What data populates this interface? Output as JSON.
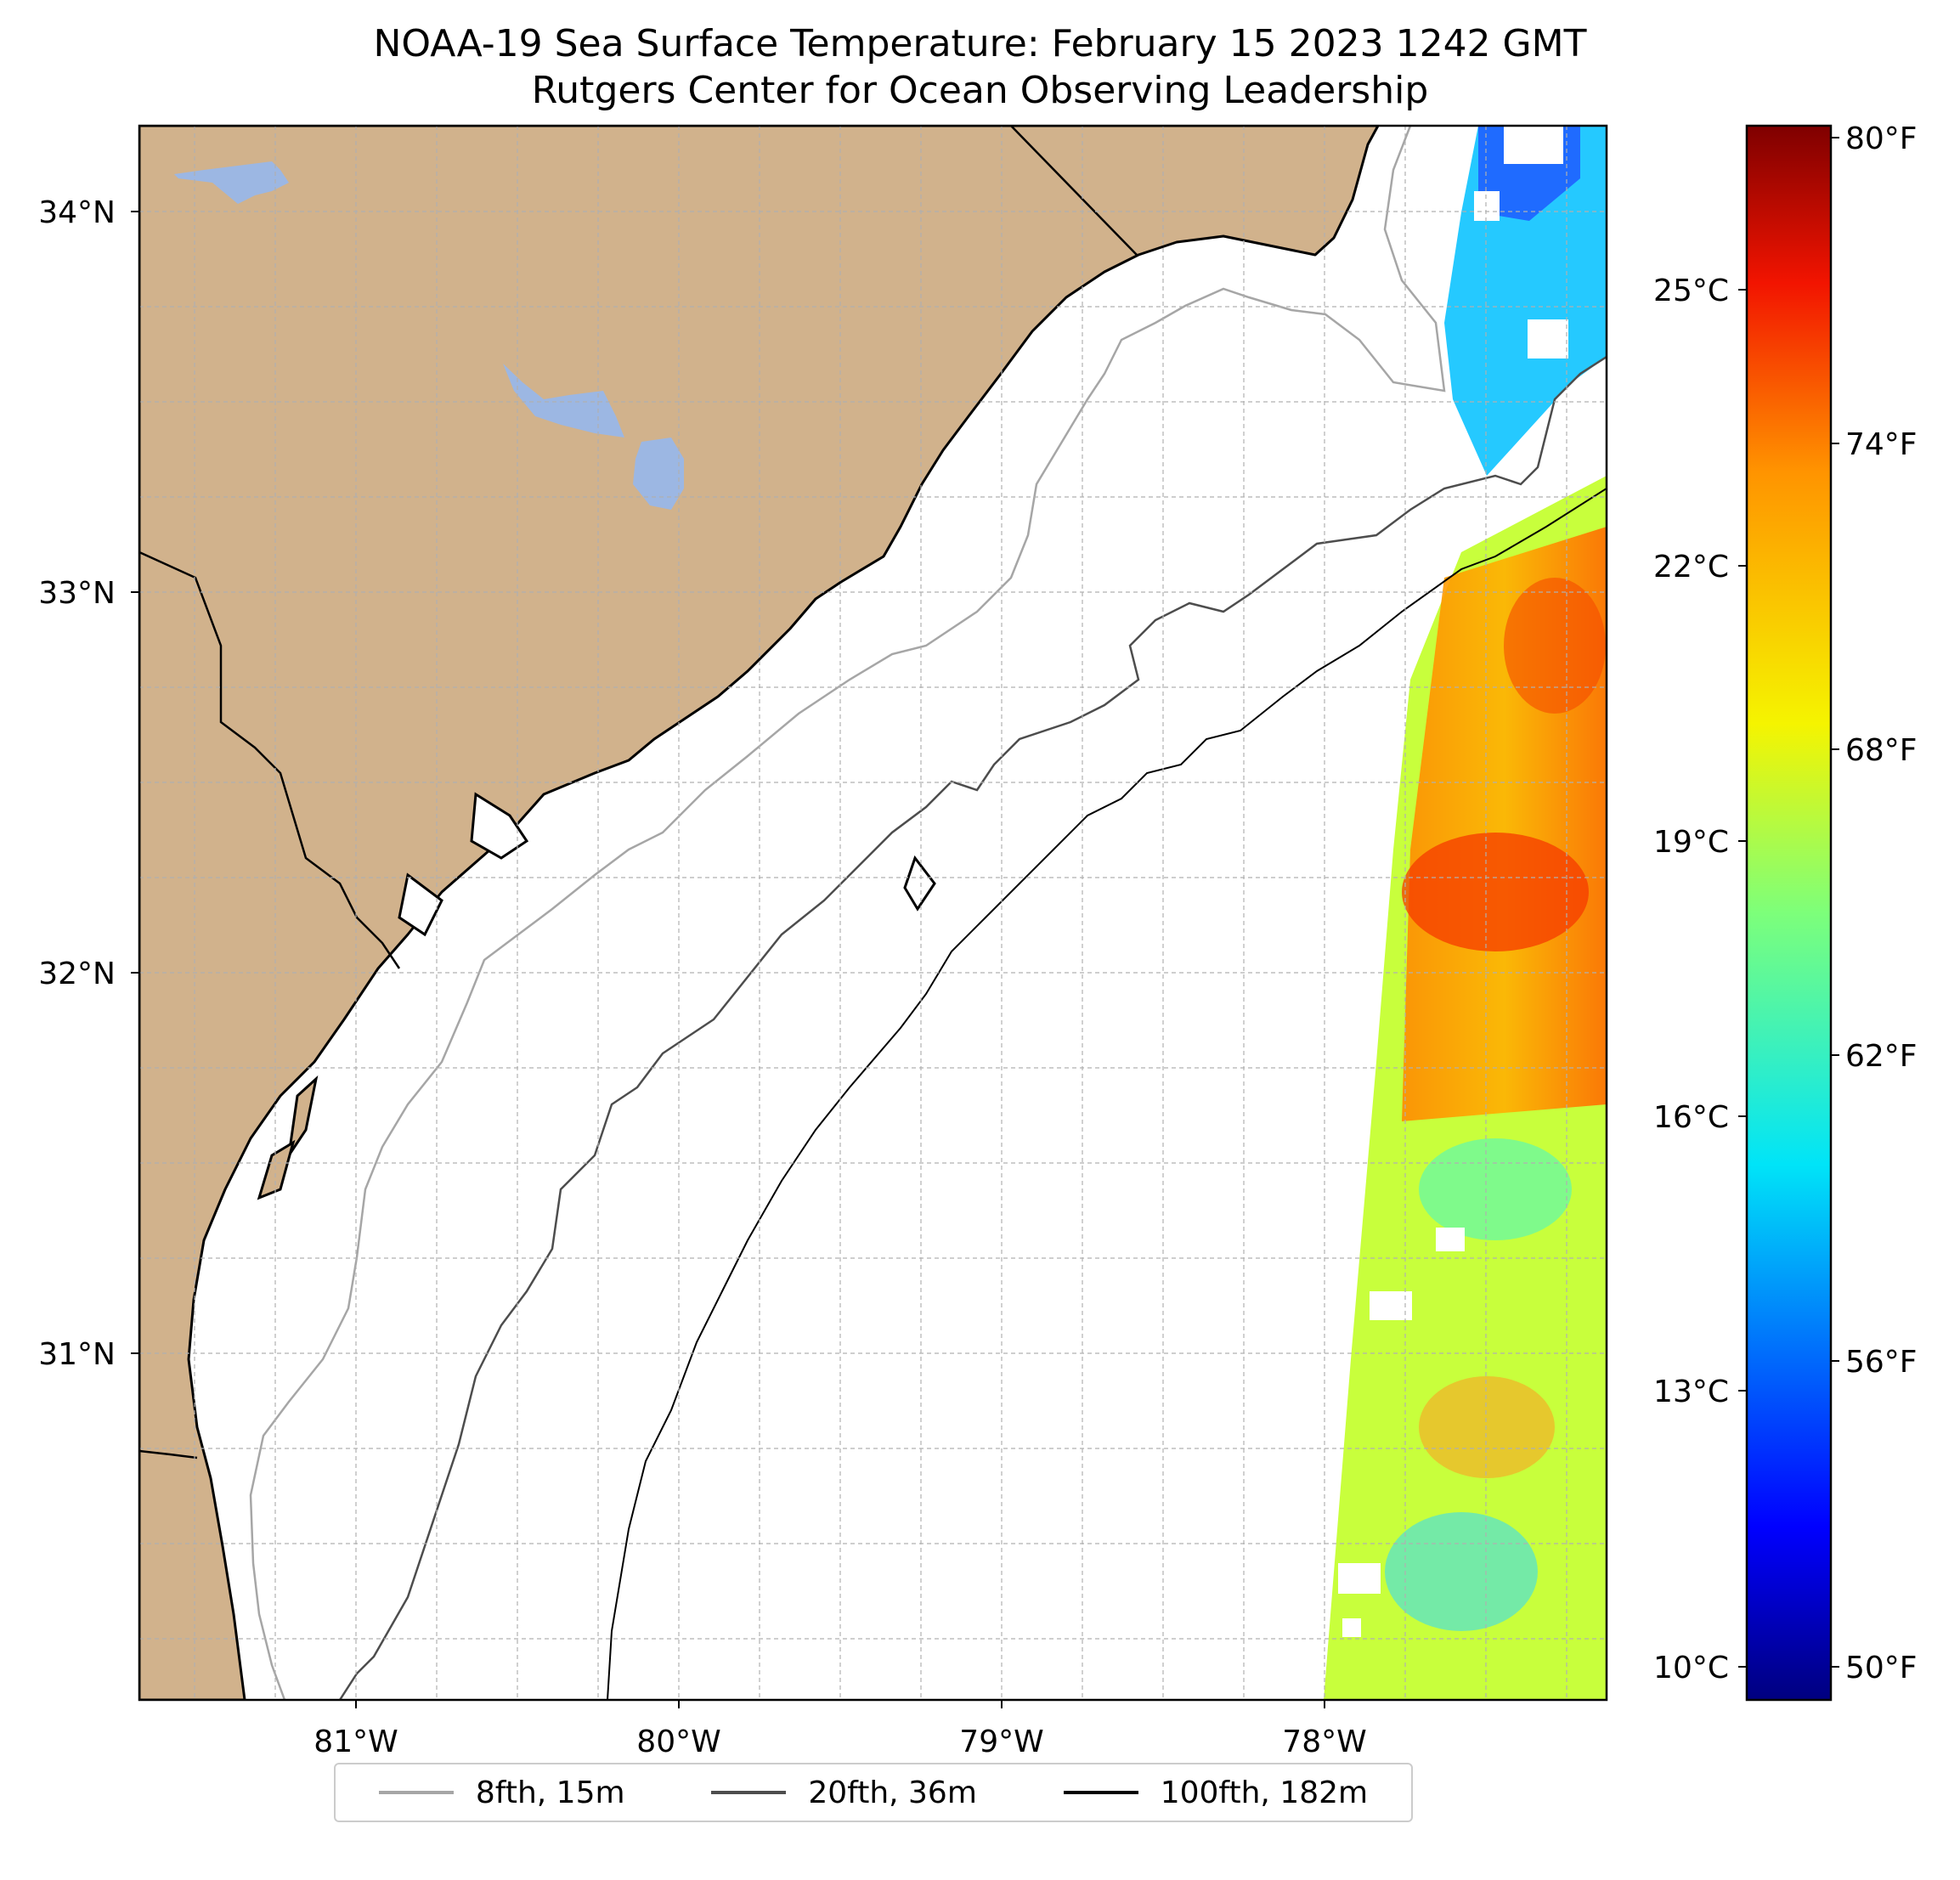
{
  "title_line1": "NOAA-19 Sea Surface Temperature: February 15 2023 1242 GMT",
  "title_line2": "Rutgers Center for Ocean Observing Leadership",
  "colors": {
    "land": "#d1b28c",
    "lakes": "#9cb7e3",
    "grid": "#b0b0b0",
    "contour_8fth": "#a6a6a6",
    "contour_20fth": "#4d4d4d",
    "contour_100fth": "#000000"
  },
  "map": {
    "lat_labels": [
      "34°N",
      "33°N",
      "32°N",
      "31°N"
    ],
    "lon_labels": [
      "81°W",
      "80°W",
      "79°W",
      "78°W"
    ]
  },
  "colorbar": {
    "celsius_labels": [
      "25°C",
      "22°C",
      "19°C",
      "16°C",
      "13°C",
      "10°C"
    ],
    "fahrenheit_labels": [
      "80°F",
      "74°F",
      "68°F",
      "62°F",
      "56°F",
      "50°F"
    ]
  },
  "legend": {
    "items": [
      {
        "label": "8fth, 15m",
        "color": "#a6a6a6"
      },
      {
        "label": "20fth, 36m",
        "color": "#4d4d4d"
      },
      {
        "label": "100fth, 182m",
        "color": "#000000"
      }
    ]
  }
}
